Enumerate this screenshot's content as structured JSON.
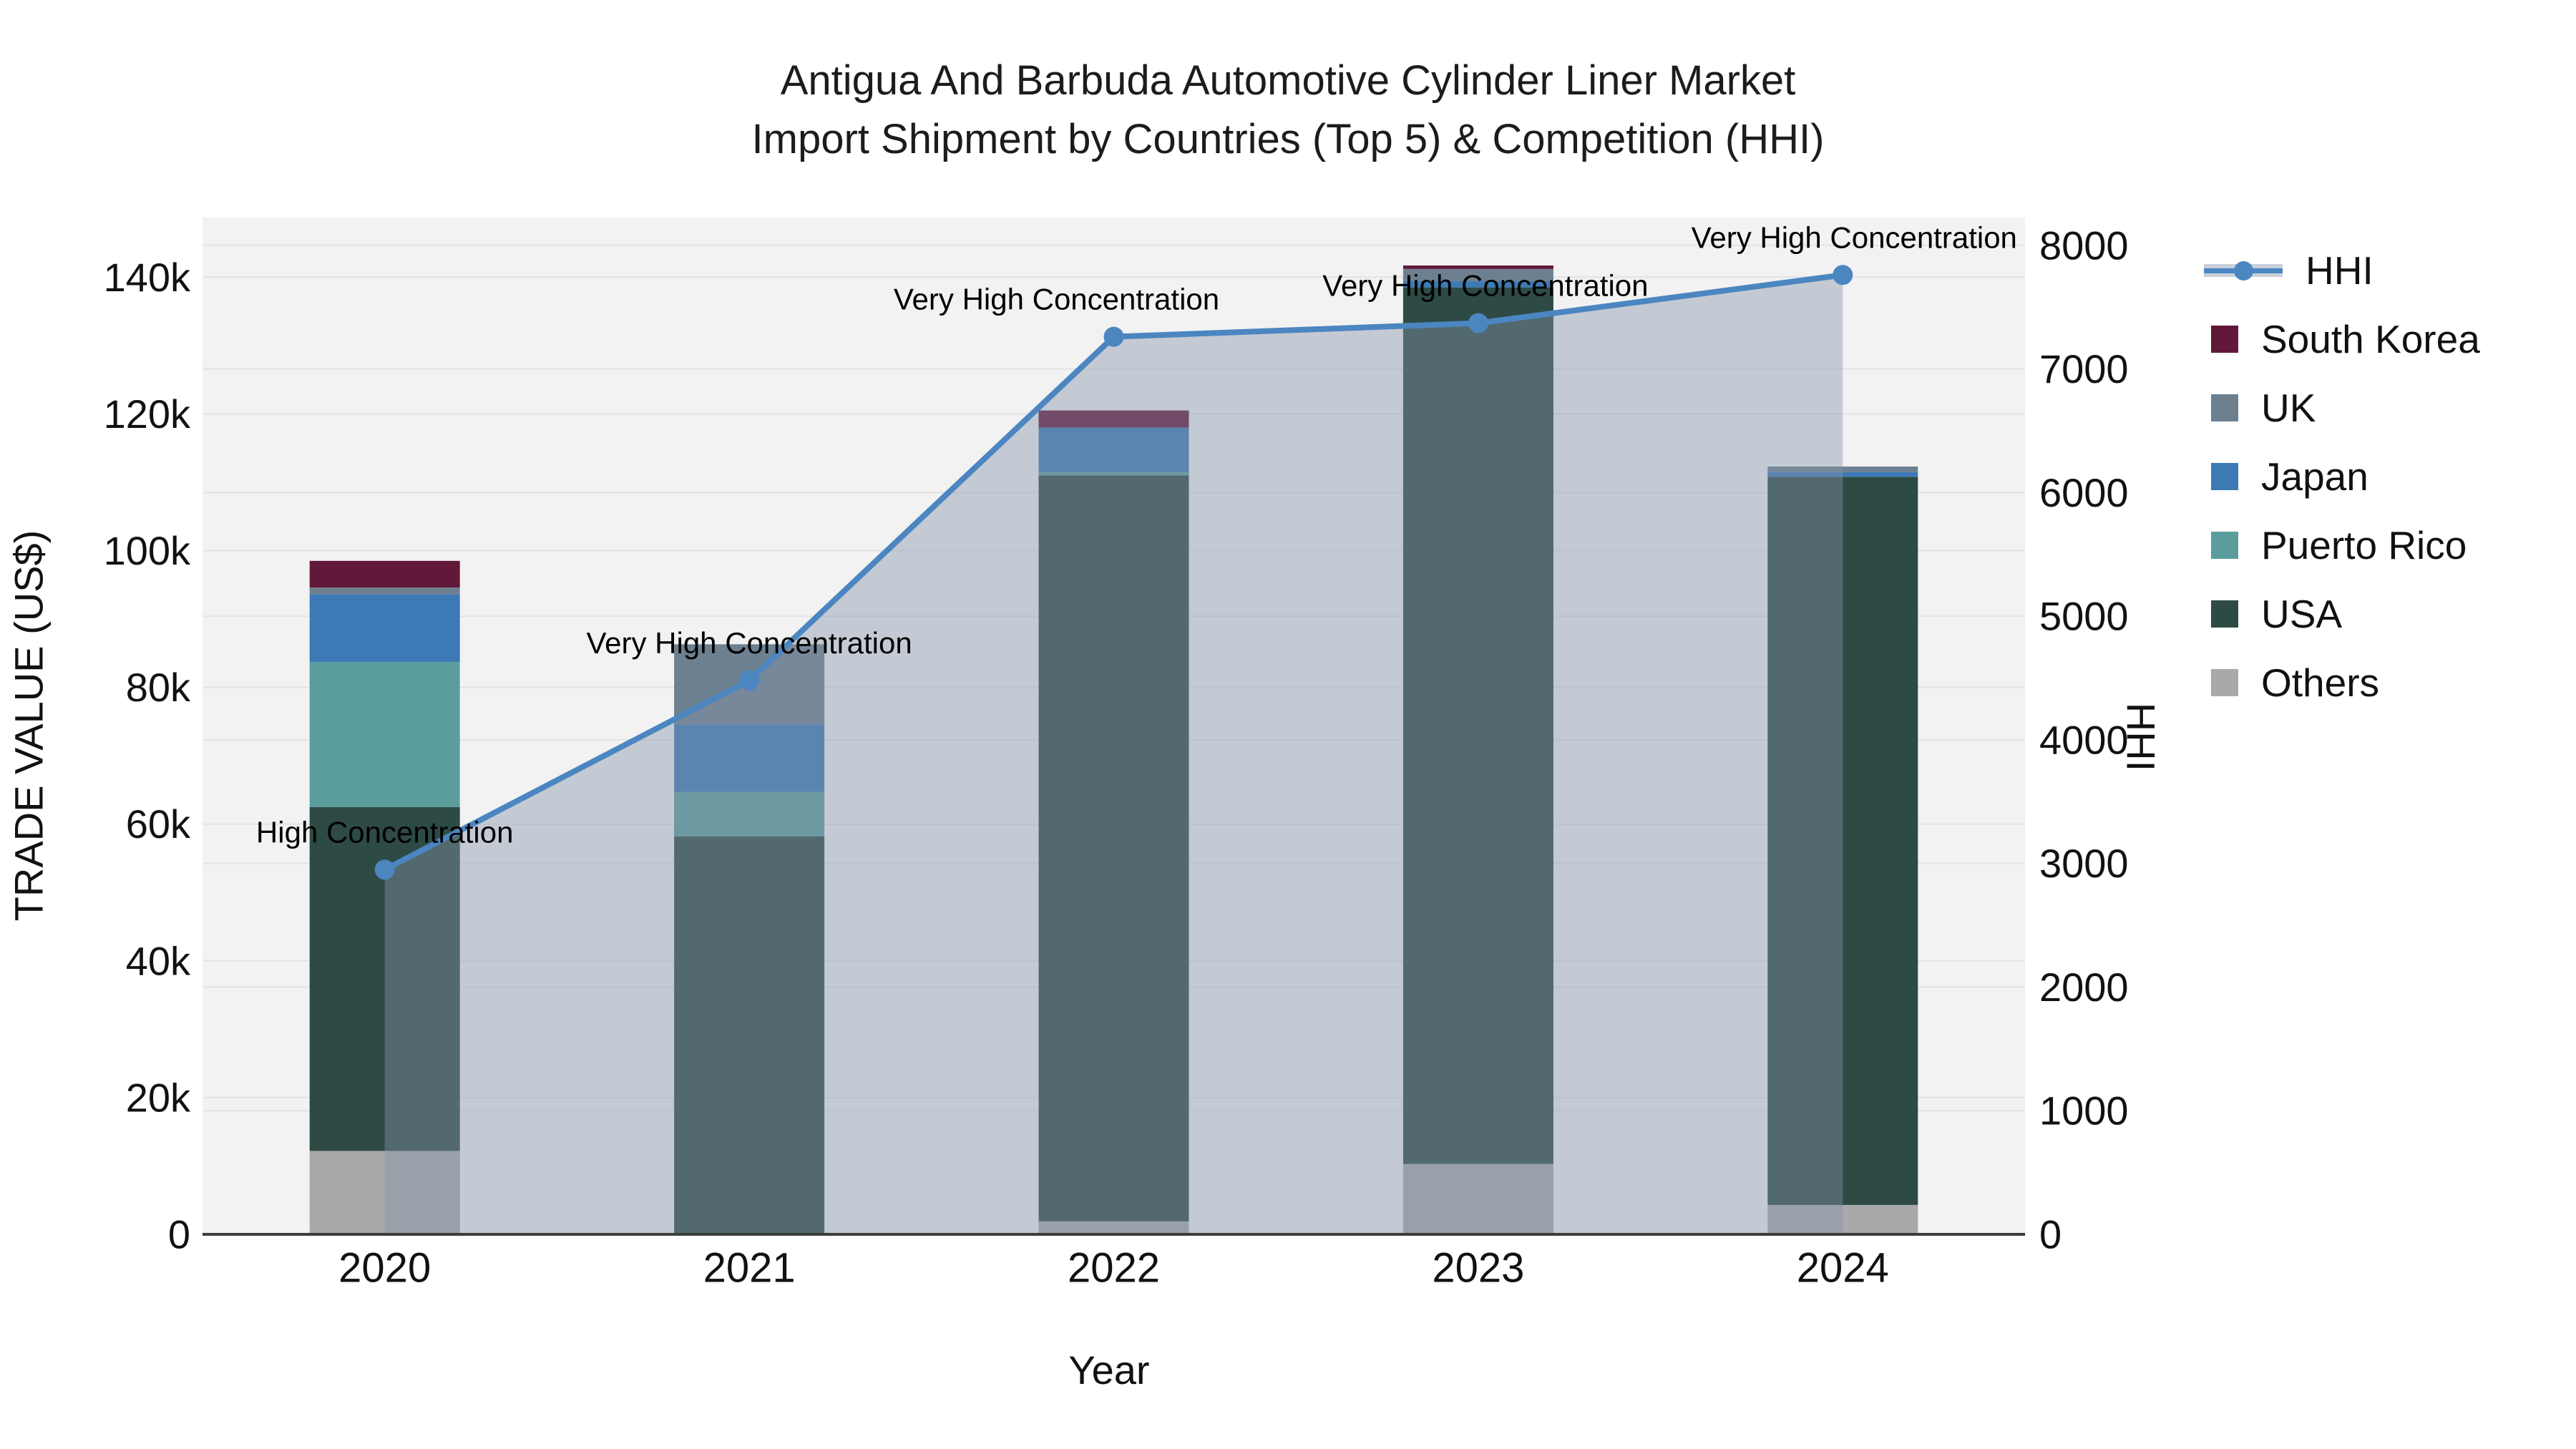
{
  "title": {
    "line1": "Antigua And Barbuda Automotive Cylinder Liner Market",
    "line2": "Import Shipment by Countries (Top 5) & Competition (HHI)"
  },
  "axes": {
    "y_left": {
      "title": "TRADE VALUE (US$)",
      "tick_values_k": [
        0,
        20,
        40,
        60,
        80,
        100,
        120,
        140
      ],
      "tick_labels": [
        "0",
        "20k",
        "40k",
        "60k",
        "80k",
        "100k",
        "120k",
        "140k"
      ],
      "max_k": 148.7
    },
    "y_right": {
      "title": "HHI",
      "tick_values": [
        0,
        1000,
        2000,
        3000,
        4000,
        5000,
        6000,
        7000,
        8000
      ],
      "tick_labels": [
        "0",
        "1000",
        "2000",
        "3000",
        "4000",
        "5000",
        "6000",
        "7000",
        "8000"
      ],
      "max": 8000
    },
    "x": {
      "title": "Year",
      "categories": [
        "2020",
        "2021",
        "2022",
        "2023",
        "2024"
      ]
    }
  },
  "legend": [
    {
      "label": "HHI",
      "type": "line",
      "color": "#4b86c1"
    },
    {
      "label": "South Korea",
      "type": "swatch",
      "color": "#621839"
    },
    {
      "label": "UK",
      "type": "swatch",
      "color": "#6d8090"
    },
    {
      "label": "Japan",
      "type": "swatch",
      "color": "#3d7ab5"
    },
    {
      "label": "Puerto Rico",
      "type": "swatch",
      "color": "#5b9d9d"
    },
    {
      "label": "USA",
      "type": "swatch",
      "color": "#2e4a45"
    },
    {
      "label": "Others",
      "type": "swatch",
      "color": "#a9a9a9"
    }
  ],
  "colors": {
    "plot_background": "#f2f2f2",
    "gridline": "#e3e3e3",
    "axis_line": "#3c3c3c",
    "hhi_line": "#4b86c1",
    "hhi_area_fill": "rgba(134,147,170,0.42)",
    "annotation_text": "#000000"
  },
  "chart_data": {
    "type": "bar+line",
    "description": "Stacked import trade value bars (US$ thousands, left axis) with HHI concentration line (right axis, area filled to zero)",
    "categories": [
      "2020",
      "2021",
      "2022",
      "2023",
      "2024"
    ],
    "bar_value_unit": "US$ thousands",
    "stack_order_bottom_to_top": [
      "Others",
      "USA",
      "Puerto Rico",
      "Japan",
      "UK",
      "South Korea"
    ],
    "series": [
      {
        "name": "Others",
        "color": "#a9a9a9",
        "values_k": [
          12.2,
          0,
          1.9,
          10.3,
          4.3
        ]
      },
      {
        "name": "USA",
        "color": "#2e4a45",
        "values_k": [
          50.3,
          58.2,
          109.1,
          128.2,
          106.5
        ]
      },
      {
        "name": "Puerto Rico",
        "color": "#5b9d9d",
        "values_k": [
          21.2,
          6.5,
          0.5,
          0,
          0
        ]
      },
      {
        "name": "Japan",
        "color": "#3d7ab5",
        "values_k": [
          9.9,
          9.9,
          6.5,
          0.9,
          0.7
        ]
      },
      {
        "name": "UK",
        "color": "#6d8090",
        "values_k": [
          1.0,
          11.7,
          0,
          1.8,
          0.8
        ]
      },
      {
        "name": "South Korea",
        "color": "#621839",
        "values_k": [
          3.9,
          0,
          2.5,
          0.5,
          0
        ]
      }
    ],
    "bar_totals_k": [
      98.5,
      86.3,
      120.5,
      141.7,
      112.3
    ],
    "hhi": {
      "name": "HHI",
      "axis": "right",
      "values": [
        2950,
        4480,
        7260,
        7370,
        7760
      ],
      "fill_to_zero": true
    },
    "annotations": [
      {
        "year": "2020",
        "text": "High Concentration"
      },
      {
        "year": "2021",
        "text": "Very High Concentration"
      },
      {
        "year": "2022",
        "text": "Very High Concentration"
      },
      {
        "year": "2023",
        "text": "Very High Concentration"
      },
      {
        "year": "2024",
        "text": "Very High Concentration"
      }
    ],
    "ylim_left_k": [
      0,
      148.7
    ],
    "ylim_right": [
      0,
      8232
    ],
    "grid": true,
    "legend_position": "right"
  }
}
